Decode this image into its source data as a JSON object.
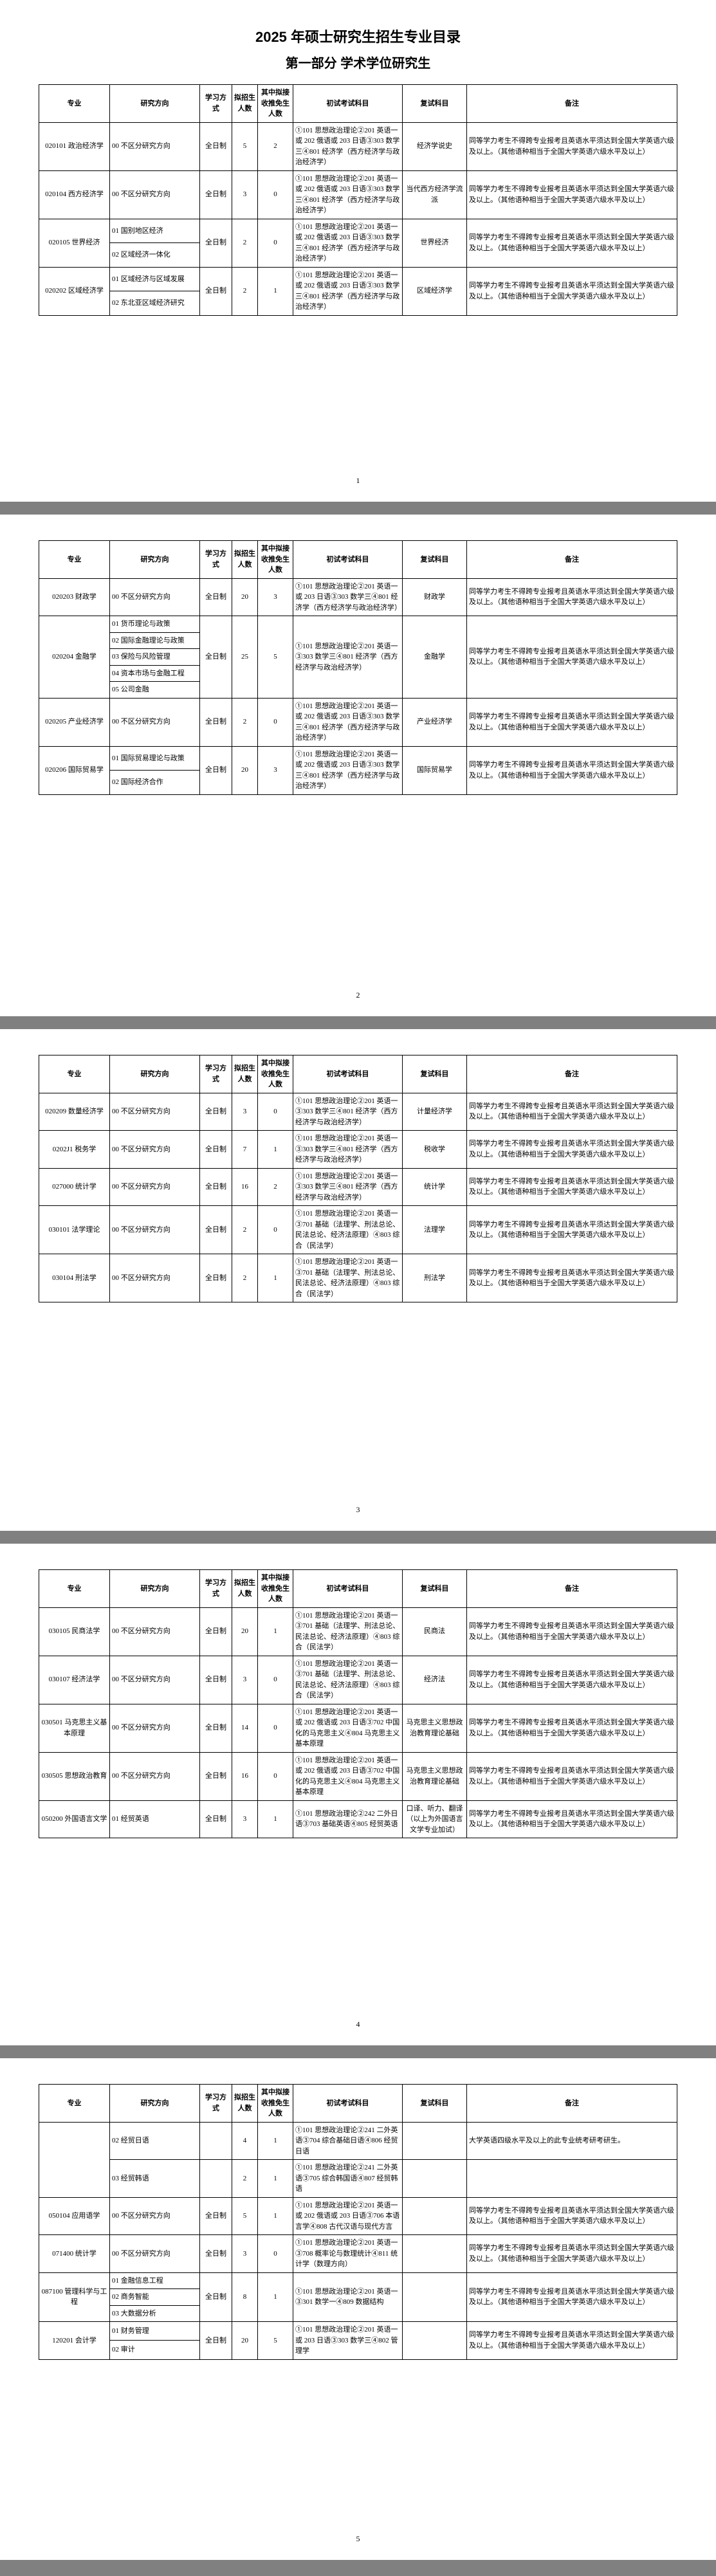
{
  "doc_title": "2025 年硕士研究生招生专业目录",
  "section_title": "第一部分 学术学位研究生",
  "headers": {
    "major": "专业",
    "direction": "研究方向",
    "method": "学习方式",
    "plan": "拟招生人数",
    "accepted": "其中拟接收推免生人数",
    "exam": "初试考试科目",
    "reexam": "复试科目",
    "note": "备注"
  },
  "note_std": "同等学力考生不得跨专业报考且英语水平须达到全国大学英语六级及以上。（其他语种相当于全国大学英语六级水平及以上）",
  "note_std2": "同等学力考生不得跨专业报考且英语水平须达到全国大学英语六级及以上。",
  "pages": [
    {
      "num": "1",
      "show_title": true,
      "rows": [
        {
          "major": "020101 政治经济学",
          "direction": "00 不区分研究方向",
          "method": "全日制",
          "plan": "5",
          "acc": "2",
          "exam": "①101 思想政治理论②201 英语一或 202 俄语或 203 日语③303 数学三④801 经济学（西方经济学与政治经济学）",
          "reexam": "经济学说史",
          "note_key": "note_std",
          "major_rowspan": 1,
          "dir_rowspan": 1,
          "method_rowspan": 1
        },
        {
          "major": "020104 西方经济学",
          "direction": "00 不区分研究方向",
          "method": "全日制",
          "plan": "3",
          "acc": "0",
          "exam": "①101 思想政治理论②201 英语一或 202 俄语或 203 日语③303 数学三④801 经济学（西方经济学与政治经济学）",
          "reexam": "当代西方经济学流派",
          "note_key": "note_std",
          "major_rowspan": 1,
          "dir_rowspan": 1,
          "method_rowspan": 1
        },
        {
          "major": "020105 世界经济",
          "direction": "01 国别地区经济",
          "method": "全日制",
          "plan": "2",
          "acc": "0",
          "exam": "①101 思想政治理论②201 英语一或 202 俄语或 203 日语③303 数学三④801 经济学（西方经济学与政治经济学）",
          "reexam": "世界经济",
          "note_key": "note_std",
          "major_rowspan": 2,
          "dir_rowspan": 1,
          "method_rowspan": 2
        },
        {
          "direction": "02 区域经济一体化",
          "dir_rowspan": 1
        },
        {
          "major": "020202 区域经济学",
          "direction": "01 区域经济与区域发展",
          "method": "全日制",
          "plan": "2",
          "acc": "1",
          "exam": "①101 思想政治理论②201 英语一或 202 俄语或 203 日语③303 数学三④801 经济学（西方经济学与政治经济学）",
          "reexam": "区域经济学",
          "note_key": "note_std",
          "major_rowspan": 2,
          "dir_rowspan": 1,
          "method_rowspan": 2
        },
        {
          "direction": "02 东北亚区域经济研究",
          "dir_rowspan": 1
        }
      ]
    },
    {
      "num": "2",
      "rows": [
        {
          "major": "020203 财政学",
          "direction": "00 不区分研究方向",
          "method": "全日制",
          "plan": "20",
          "acc": "3",
          "exam": "①101 思想政治理论②201 英语一或 203 日语③303 数学三④801 经济学（西方经济学与政治经济学）",
          "reexam": "财政学",
          "note_key": "note_std",
          "major_rowspan": 1,
          "dir_rowspan": 1,
          "method_rowspan": 1
        },
        {
          "major": "020204 金融学",
          "direction": "01 货币理论与政策",
          "method": "全日制",
          "plan": "25",
          "acc": "5",
          "exam": "①101 思想政治理论②201 英语一③303 数学三④801 经济学（西方经济学与政治经济学）",
          "reexam": "金融学",
          "note_key": "note_std",
          "major_rowspan": 5,
          "dir_rowspan": 1,
          "method_rowspan": 5
        },
        {
          "direction": "02 国际金融理论与政策",
          "dir_rowspan": 1
        },
        {
          "direction": "03 保险与风险管理",
          "dir_rowspan": 1
        },
        {
          "direction": "04 资本市场与金融工程",
          "dir_rowspan": 1
        },
        {
          "direction": "05 公司金融",
          "dir_rowspan": 1
        },
        {
          "major": "020205 产业经济学",
          "direction": "00 不区分研究方向",
          "method": "全日制",
          "plan": "2",
          "acc": "0",
          "exam": "①101 思想政治理论②201 英语一或 202 俄语或 203 日语③303 数学三④801 经济学（西方经济学与政治经济学）",
          "reexam": "产业经济学",
          "note_key": "note_std",
          "major_rowspan": 1,
          "dir_rowspan": 1,
          "method_rowspan": 1
        },
        {
          "major": "020206 国际贸易学",
          "direction": "01 国际贸易理论与政策",
          "method": "全日制",
          "plan": "20",
          "acc": "3",
          "exam": "①101 思想政治理论②201 英语一或 202 俄语或 203 日语③303 数学三④801 经济学（西方经济学与政治经济学）",
          "reexam": "国际贸易学",
          "note_key": "note_std",
          "major_rowspan": 2,
          "dir_rowspan": 1,
          "method_rowspan": 2
        },
        {
          "direction": "02 国际经济合作",
          "dir_rowspan": 1
        }
      ]
    },
    {
      "num": "3",
      "rows": [
        {
          "major": "020209 数量经济学",
          "direction": "00 不区分研究方向",
          "method": "全日制",
          "plan": "3",
          "acc": "0",
          "exam": "①101 思想政治理论②201 英语一③303 数学三④801 经济学（西方经济学与政治经济学）",
          "reexam": "计量经济学",
          "note_key": "note_std",
          "major_rowspan": 1,
          "dir_rowspan": 1,
          "method_rowspan": 1
        },
        {
          "major": "0202J1 税务学",
          "direction": "00 不区分研究方向",
          "method": "全日制",
          "plan": "7",
          "acc": "1",
          "exam": "①101 思想政治理论②201 英语一③303 数学三④801 经济学（西方经济学与政治经济学）",
          "reexam": "税收学",
          "note_key": "note_std",
          "major_rowspan": 1,
          "dir_rowspan": 1,
          "method_rowspan": 1
        },
        {
          "major": "027000 统计学",
          "direction": "00 不区分研究方向",
          "method": "全日制",
          "plan": "16",
          "acc": "2",
          "exam": "①101 思想政治理论②201 英语一③303 数学三④801 经济学（西方经济学与政治经济学）",
          "reexam": "统计学",
          "note_key": "note_std",
          "major_rowspan": 1,
          "dir_rowspan": 1,
          "method_rowspan": 1
        },
        {
          "major": "030101 法学理论",
          "direction": "00 不区分研究方向",
          "method": "全日制",
          "plan": "2",
          "acc": "0",
          "exam": "①101 思想政治理论②201 英语一③701 基础（法理学、刑法总论、民法总论、经济法原理）④803 综合（民法学）",
          "reexam": "法理学",
          "note_key": "note_std",
          "major_rowspan": 1,
          "dir_rowspan": 1,
          "method_rowspan": 1
        },
        {
          "major": "030104 刑法学",
          "direction": "00 不区分研究方向",
          "method": "全日制",
          "plan": "2",
          "acc": "1",
          "exam": "①101 思想政治理论②201 英语一③701 基础（法理学、刑法总论、民法总论、经济法原理）④803 综合（民法学）",
          "reexam": "刑法学",
          "note_key": "note_std",
          "major_rowspan": 1,
          "dir_rowspan": 1,
          "method_rowspan": 1
        }
      ]
    },
    {
      "num": "4",
      "rows": [
        {
          "major": "030105 民商法学",
          "direction": "00 不区分研究方向",
          "method": "全日制",
          "plan": "20",
          "acc": "1",
          "exam": "①101 思想政治理论②201 英语一③701 基础（法理学、刑法总论、民法总论、经济法原理）④803 综合（民法学）",
          "reexam": "民商法",
          "note_key": "note_std",
          "major_rowspan": 1,
          "dir_rowspan": 1,
          "method_rowspan": 1
        },
        {
          "major": "030107 经济法学",
          "direction": "00 不区分研究方向",
          "method": "全日制",
          "plan": "3",
          "acc": "0",
          "exam": "①101 思想政治理论②201 英语一③701 基础（法理学、刑法总论、民法总论、经济法原理）④803 综合（民法学）",
          "reexam": "经济法",
          "note_key": "note_std",
          "major_rowspan": 1,
          "dir_rowspan": 1,
          "method_rowspan": 1
        },
        {
          "major": "030501 马克思主义基本原理",
          "direction": "00 不区分研究方向",
          "method": "全日制",
          "plan": "14",
          "acc": "0",
          "exam": "①101 思想政治理论②201 英语一或 202 俄语或 203 日语③702 中国化的马克思主义④804 马克思主义基本原理",
          "reexam": "马克思主义思想政治教育理论基础",
          "note_key": "note_std",
          "major_rowspan": 1,
          "dir_rowspan": 1,
          "method_rowspan": 1
        },
        {
          "major": "030505 思想政治教育",
          "direction": "00 不区分研究方向",
          "method": "全日制",
          "plan": "16",
          "acc": "0",
          "exam": "①101 思想政治理论②201 英语一或 202 俄语或 203 日语③702 中国化的马克思主义④804 马克思主义基本原理",
          "reexam": "马克思主义思想政治教育理论基础",
          "note_key": "note_std",
          "major_rowspan": 1,
          "dir_rowspan": 1,
          "method_rowspan": 1
        },
        {
          "major": "050200 外国语言文学",
          "direction": "01 经贸英语",
          "method": "全日制",
          "plan": "3",
          "acc": "1",
          "exam": "①101 思想政治理论②242 二外日语③703 基础英语④805 经贸英语",
          "reexam": "口译、听力、翻译（以上为外国语言文学专业加试）",
          "note_key": "note_std",
          "major_rowspan": 1,
          "dir_rowspan": 1,
          "method_rowspan": 1
        }
      ]
    },
    {
      "num": "5",
      "rows": [
        {
          "major": "",
          "direction": "02 经贸日语",
          "method": "",
          "plan": "4",
          "acc": "1",
          "exam": "①101 思想政治理论②241 二外英语③704 综合基础日语④806 经贸日语",
          "reexam": "",
          "note_text": "大学英语四级水平及以上的此专业统考研考研生。",
          "major_rowspan": 2,
          "dir_rowspan": 1,
          "method_rowspan": 1,
          "blank_major": true
        },
        {
          "direction": "03 经贸韩语",
          "method": "",
          "plan": "2",
          "acc": "1",
          "exam": "①101 思想政治理论②241 二外英语③705 综合韩国语④807 经贸韩语",
          "reexam": "",
          "note_text": "",
          "dir_rowspan": 1,
          "method_rowspan": 1
        },
        {
          "major": "050104 应用语学",
          "direction": "00 不区分研究方向",
          "method": "全日制",
          "plan": "5",
          "acc": "1",
          "exam": "①101 思想政治理论②201 英语一或 202 俄语或 203 日语③706 本语言学④808 古代汉语与现代方言",
          "reexam": "",
          "note_key": "note_std",
          "major_rowspan": 1,
          "dir_rowspan": 1,
          "method_rowspan": 1
        },
        {
          "major": "071400 统计学",
          "direction": "00 不区分研究方向",
          "method": "全日制",
          "plan": "3",
          "acc": "0",
          "exam": "①101 思想政治理论②201 英语一③708 概率论与数理统计④811 统计学（数理方向）",
          "reexam": "",
          "note_key": "note_std",
          "major_rowspan": 1,
          "dir_rowspan": 1,
          "method_rowspan": 1
        },
        {
          "major": "087100 管理科学与工程",
          "direction": "01 金融信息工程",
          "method": "全日制",
          "plan": "8",
          "acc": "1",
          "exam": "①101 思想政治理论②201 英语一③301 数学一④809 数据结构",
          "reexam": "",
          "note_key": "note_std",
          "major_rowspan": 3,
          "dir_rowspan": 1,
          "method_rowspan": 3
        },
        {
          "direction": "02 商务智能",
          "dir_rowspan": 1
        },
        {
          "direction": "03 大数据分析",
          "dir_rowspan": 1
        },
        {
          "major": "120201 会计学",
          "direction": "01 财务管理",
          "method": "全日制",
          "plan": "20",
          "acc": "5",
          "exam": "①101 思想政治理论②201 英语一或 203 日语③303 数学三④802 管理学",
          "reexam": "",
          "note_key": "note_std",
          "major_rowspan": 2,
          "dir_rowspan": 1,
          "method_rowspan": 2
        },
        {
          "direction": "02 审计",
          "dir_rowspan": 1
        }
      ]
    }
  ]
}
